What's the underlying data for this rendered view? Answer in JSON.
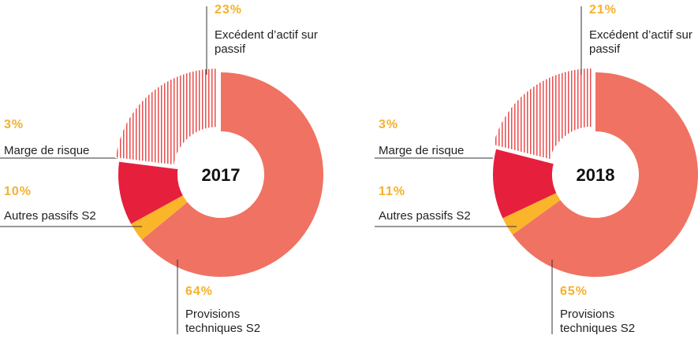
{
  "chart_data": [
    {
      "type": "pie",
      "title": "2017",
      "categories": [
        "Provisions techniques S2",
        "Marge de risque",
        "Autres passifs S2",
        "Excédent d’actif sur passif"
      ],
      "values": [
        64,
        3,
        10,
        23
      ],
      "value_labels": [
        "64%",
        "3%",
        "10%",
        "23%"
      ],
      "colors": [
        "#f07262",
        "#fbb52b",
        "#e61f3d",
        "hatch"
      ]
    },
    {
      "type": "pie",
      "title": "2018",
      "categories": [
        "Provisions techniques S2",
        "Marge de risque",
        "Autres passifs S2",
        "Excédent d’actif sur passif"
      ],
      "values": [
        65,
        3,
        11,
        21
      ],
      "value_labels": [
        "65%",
        "3%",
        "11%",
        "21%"
      ],
      "colors": [
        "#f07262",
        "#fbb52b",
        "#e61f3d",
        "hatch"
      ]
    }
  ]
}
